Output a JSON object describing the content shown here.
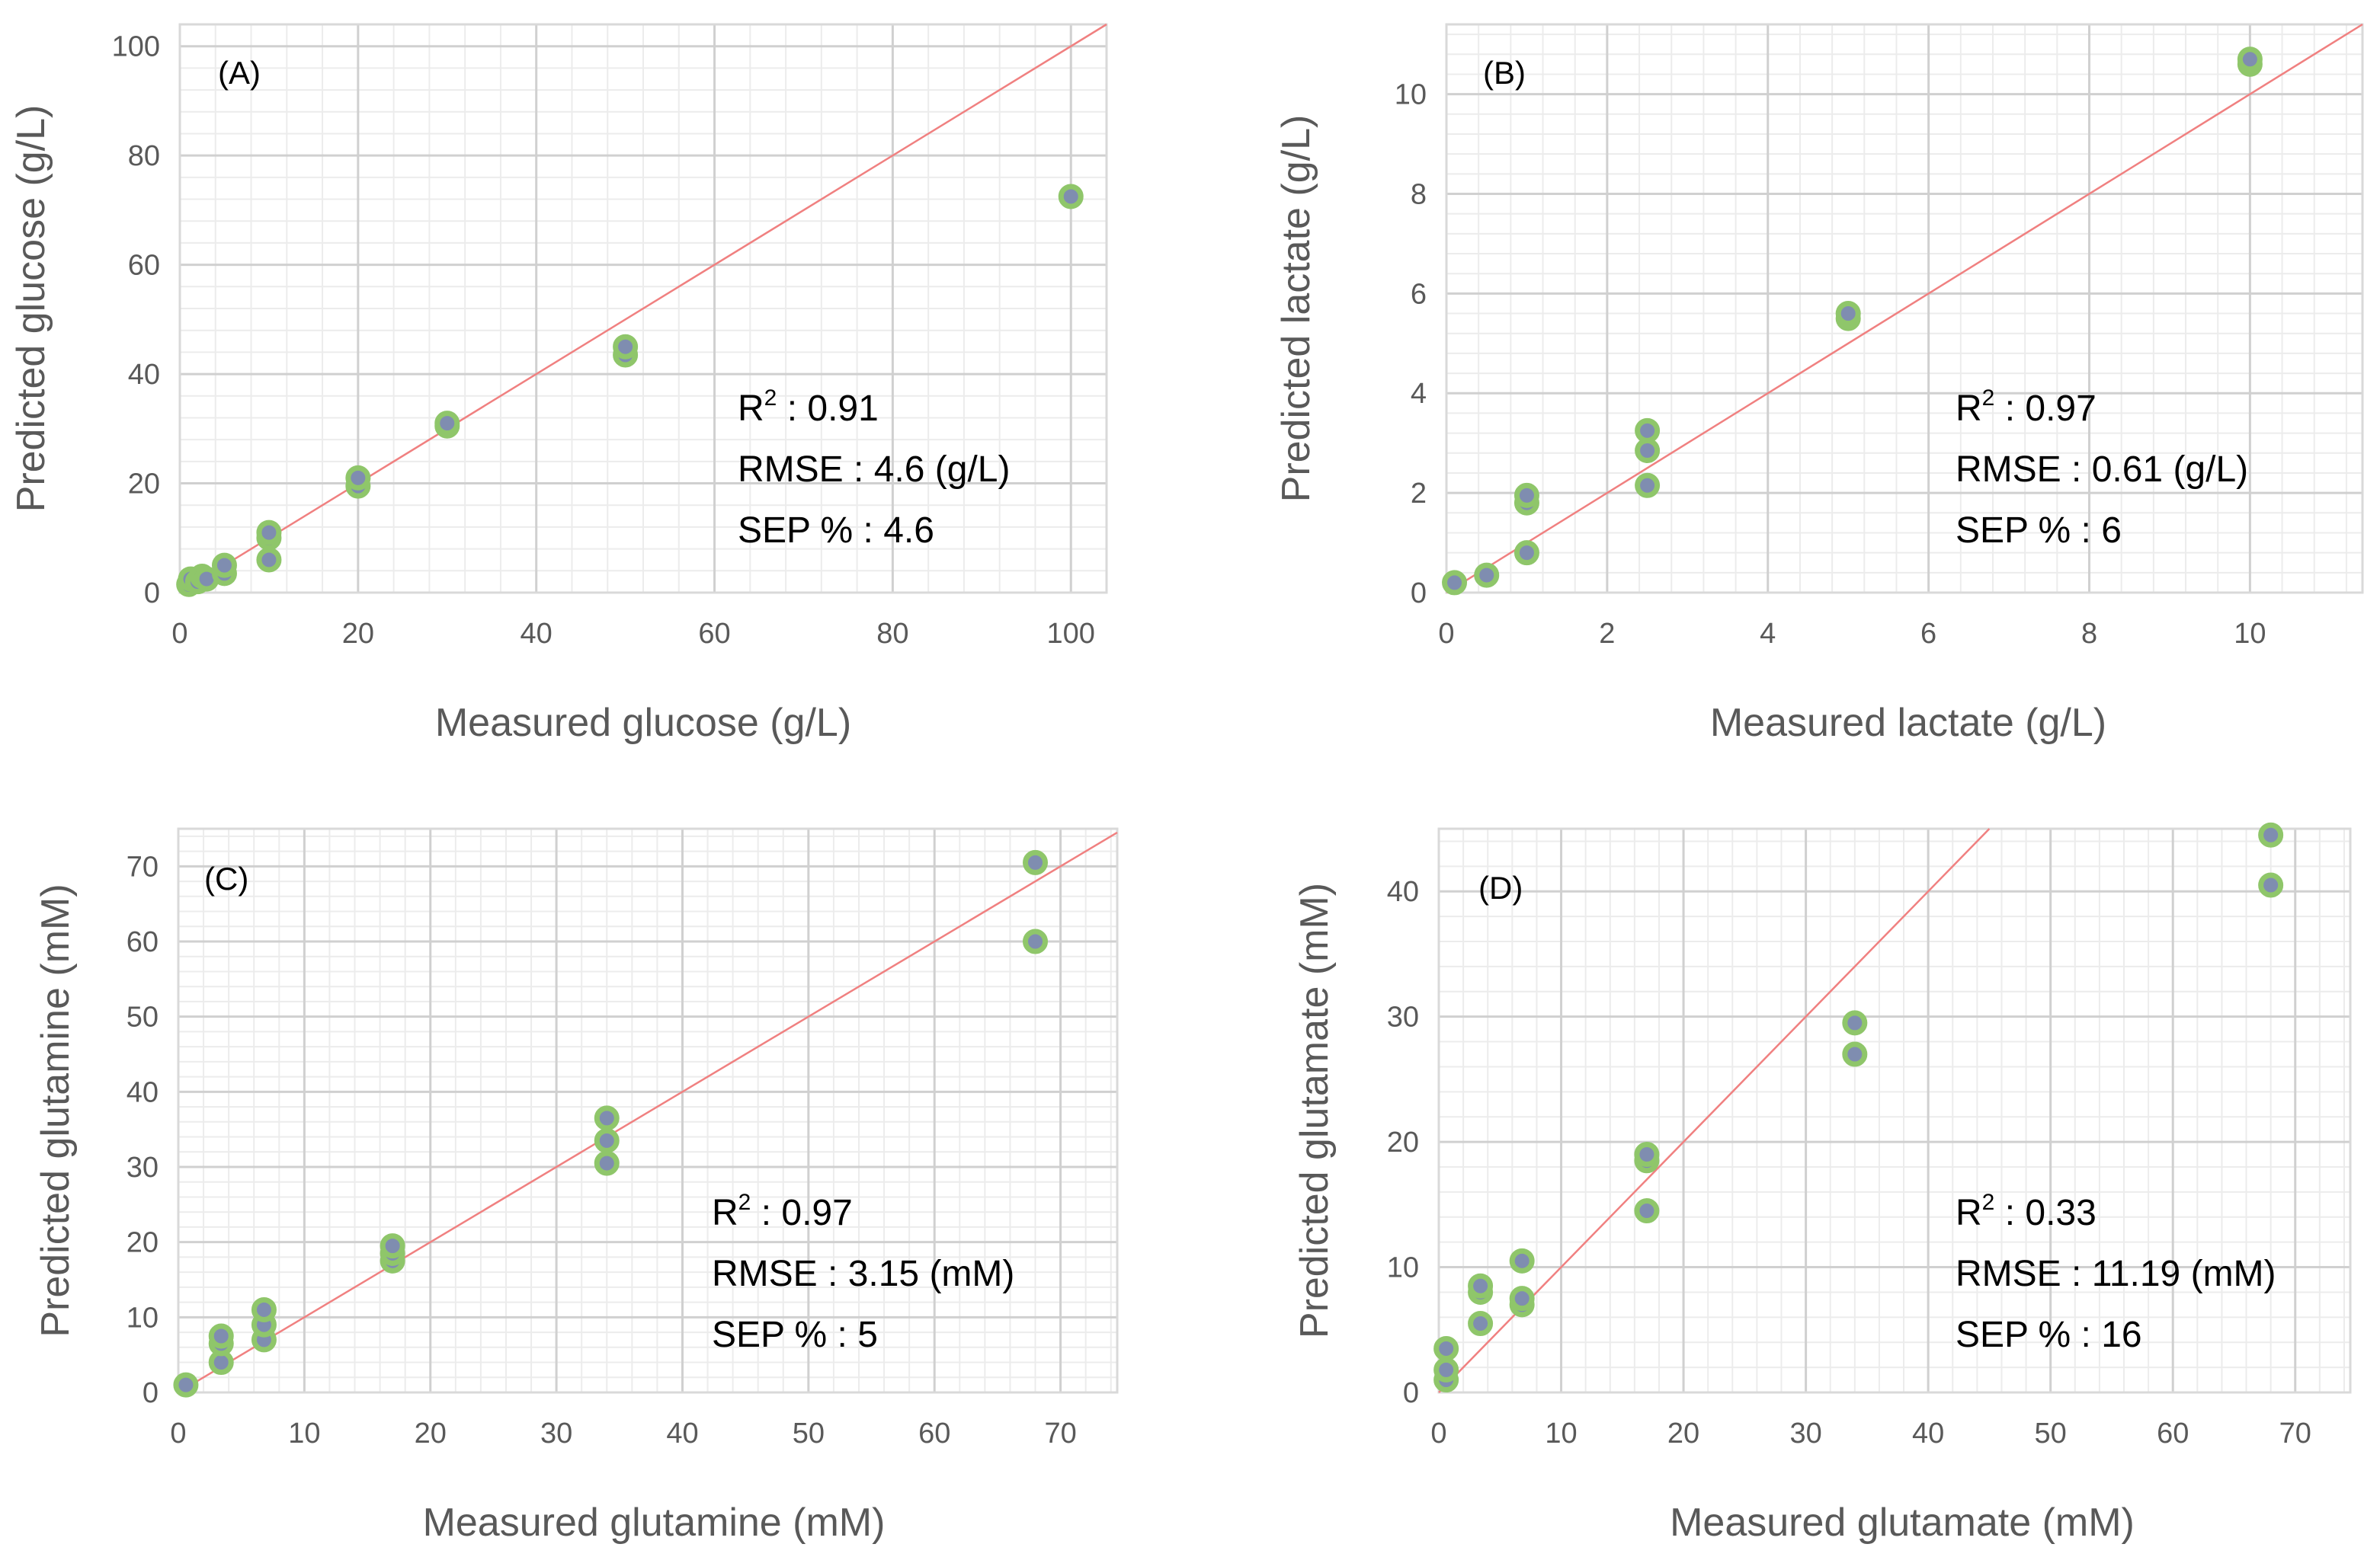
{
  "chart_data": [
    {
      "type": "scatter",
      "panel_label": "(A)",
      "xlabel": "Measured glucose (g/L)",
      "ylabel": "Predicted glucose (g/L)",
      "xlim": [
        0,
        104
      ],
      "ylim": [
        0,
        104
      ],
      "xticks": [
        0,
        20,
        40,
        60,
        80,
        100
      ],
      "yticks": [
        0,
        20,
        40,
        60,
        80,
        100
      ],
      "x_minor_step": 4,
      "y_minor_step": 4,
      "grid": true,
      "identity_line": [
        [
          0,
          0
        ],
        [
          104,
          104
        ]
      ],
      "points": [
        [
          1,
          1.5
        ],
        [
          1.2,
          2.5
        ],
        [
          2,
          2
        ],
        [
          2.5,
          3
        ],
        [
          3,
          2.5
        ],
        [
          5,
          3.5
        ],
        [
          5,
          5
        ],
        [
          10,
          6
        ],
        [
          10,
          10
        ],
        [
          10,
          11
        ],
        [
          20,
          19.5
        ],
        [
          20,
          21
        ],
        [
          30,
          30.5
        ],
        [
          30,
          31
        ],
        [
          50,
          43.5
        ],
        [
          50,
          45
        ],
        [
          100,
          72.5
        ]
      ],
      "stats": {
        "r2_label": "R",
        "r2_sup": "2",
        "r2_value": " : 0.91",
        "rmse": "RMSE : 4.6 (g/L)",
        "sep": "SEP % : 4.6"
      }
    },
    {
      "type": "scatter",
      "panel_label": "(B)",
      "xlabel": "Measured lactate (g/L)",
      "ylabel": "Predicted lactate (g/L)",
      "xlim": [
        0,
        11.4
      ],
      "ylim": [
        0,
        11.4
      ],
      "xticks": [
        0,
        2,
        4,
        6,
        8,
        10
      ],
      "yticks": [
        0,
        2,
        4,
        6,
        8,
        10
      ],
      "x_minor_step": 0.4,
      "y_minor_step": 0.4,
      "grid": true,
      "identity_line": [
        [
          0,
          0
        ],
        [
          11.4,
          11.4
        ]
      ],
      "points": [
        [
          0.1,
          0.2
        ],
        [
          0.5,
          0.35
        ],
        [
          1,
          0.8
        ],
        [
          1,
          1.8
        ],
        [
          1,
          1.95
        ],
        [
          2.5,
          2.15
        ],
        [
          2.5,
          2.85
        ],
        [
          2.5,
          3.25
        ],
        [
          5,
          5.5
        ],
        [
          5,
          5.6
        ],
        [
          10,
          10.6
        ],
        [
          10,
          10.7
        ]
      ],
      "stats": {
        "r2_label": "R",
        "r2_sup": "2",
        "r2_value": " : 0.97",
        "rmse": "RMSE : 0.61 (g/L)",
        "sep": "SEP % : 6"
      }
    },
    {
      "type": "scatter",
      "panel_label": "(C)",
      "xlabel": "Measured glutamine (mM)",
      "ylabel": "Predicted glutamine (mM)",
      "xlim": [
        0,
        74.5
      ],
      "ylim": [
        0,
        75
      ],
      "xticks": [
        0,
        10,
        20,
        30,
        40,
        50,
        60,
        70
      ],
      "yticks": [
        0,
        10,
        20,
        30,
        40,
        50,
        60,
        70
      ],
      "x_minor_step": 2,
      "y_minor_step": 2,
      "grid": true,
      "identity_line": [
        [
          0,
          0
        ],
        [
          74.5,
          74.5
        ]
      ],
      "points": [
        [
          0.6,
          1
        ],
        [
          3.4,
          4
        ],
        [
          3.4,
          6.5
        ],
        [
          3.4,
          7.5
        ],
        [
          6.8,
          7
        ],
        [
          6.8,
          9
        ],
        [
          6.8,
          11
        ],
        [
          17,
          17.5
        ],
        [
          17,
          18.5
        ],
        [
          17,
          19.5
        ],
        [
          34,
          30.5
        ],
        [
          34,
          33.5
        ],
        [
          34,
          36.5
        ],
        [
          68,
          60
        ],
        [
          68,
          70.5
        ]
      ],
      "stats": {
        "r2_label": "R",
        "r2_sup": "2",
        "r2_value": " : 0.97",
        "rmse": "RMSE : 3.15 (mM)",
        "sep": "SEP % : 5"
      }
    },
    {
      "type": "scatter",
      "panel_label": "(D)",
      "xlabel": "Measured glutamate (mM)",
      "ylabel": "Predicted glutamate (mM)",
      "xlim": [
        0,
        74.5
      ],
      "ylim": [
        0,
        45
      ],
      "xticks": [
        0,
        10,
        20,
        30,
        40,
        50,
        60,
        70
      ],
      "yticks": [
        0,
        10,
        20,
        30,
        40
      ],
      "x_minor_step": 2,
      "y_minor_step": 2,
      "grid": true,
      "identity_line": [
        [
          0,
          0
        ],
        [
          45,
          45
        ]
      ],
      "points": [
        [
          0.6,
          1
        ],
        [
          0.6,
          1.8
        ],
        [
          0.6,
          3.5
        ],
        [
          3.4,
          5.5
        ],
        [
          3.4,
          8
        ],
        [
          3.4,
          8.5
        ],
        [
          6.8,
          7
        ],
        [
          6.8,
          7.5
        ],
        [
          6.8,
          10.5
        ],
        [
          17,
          14.5
        ],
        [
          17,
          18.5
        ],
        [
          17,
          19
        ],
        [
          34,
          27
        ],
        [
          34,
          29.5
        ],
        [
          68,
          40.5
        ],
        [
          68,
          44.5
        ]
      ],
      "stats": {
        "r2_label": "R",
        "r2_sup": "2",
        "r2_value": " : 0.33",
        "rmse": "RMSE : 11.19 (mM)",
        "sep": "SEP % : 16"
      }
    }
  ],
  "colors": {
    "marker_fill": "#7f8db0",
    "marker_stroke": "#8fc66a",
    "identity_line": "#f08080",
    "major_grid": "#d0d0d0",
    "minor_grid": "#ececec",
    "frame": "#d9d9d9",
    "tick_text": "#595959"
  }
}
